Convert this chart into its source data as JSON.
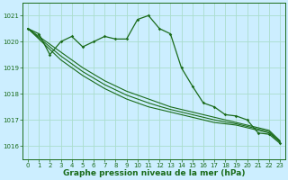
{
  "title": "Graphe pression niveau de la mer (hPa)",
  "background_color": "#cceeff",
  "grid_color": "#aaddcc",
  "line_color": "#1a6b1a",
  "x_values": [
    0,
    1,
    2,
    3,
    4,
    5,
    6,
    7,
    8,
    9,
    10,
    11,
    12,
    13,
    14,
    15,
    16,
    17,
    18,
    19,
    20,
    21,
    22,
    23
  ],
  "series_jagged": [
    1020.5,
    1020.3,
    1019.5,
    1020.0,
    1020.2,
    1019.8,
    1020.0,
    1020.2,
    1020.1,
    1020.1,
    1020.85,
    1021.0,
    1020.5,
    1020.3,
    1019.0,
    1018.3,
    1017.65,
    1017.5,
    1017.2,
    1017.15,
    1017.0,
    1016.5,
    1016.45,
    1016.1
  ],
  "series_line1": [
    1020.5,
    1020.1,
    1019.7,
    1019.3,
    1019.0,
    1018.7,
    1018.45,
    1018.2,
    1018.0,
    1017.8,
    1017.65,
    1017.5,
    1017.4,
    1017.3,
    1017.2,
    1017.1,
    1017.0,
    1016.9,
    1016.85,
    1016.8,
    1016.7,
    1016.6,
    1016.5,
    1016.15
  ],
  "series_line2": [
    1020.5,
    1020.2,
    1019.9,
    1019.6,
    1019.3,
    1019.0,
    1018.75,
    1018.5,
    1018.3,
    1018.1,
    1017.95,
    1017.8,
    1017.65,
    1017.5,
    1017.4,
    1017.3,
    1017.2,
    1017.1,
    1017.0,
    1016.9,
    1016.8,
    1016.7,
    1016.6,
    1016.2
  ],
  "series_line3": [
    1020.5,
    1020.15,
    1019.8,
    1019.45,
    1019.15,
    1018.85,
    1018.6,
    1018.35,
    1018.15,
    1017.95,
    1017.8,
    1017.65,
    1017.52,
    1017.4,
    1017.3,
    1017.2,
    1017.1,
    1017.0,
    1016.92,
    1016.85,
    1016.75,
    1016.65,
    1016.55,
    1016.17
  ],
  "ylim": [
    1015.5,
    1021.5
  ],
  "yticks": [
    1016,
    1017,
    1018,
    1019,
    1020,
    1021
  ],
  "xlim": [
    -0.5,
    23.5
  ],
  "xticks": [
    0,
    1,
    2,
    3,
    4,
    5,
    6,
    7,
    8,
    9,
    10,
    11,
    12,
    13,
    14,
    15,
    16,
    17,
    18,
    19,
    20,
    21,
    22,
    23
  ],
  "tick_fontsize": 5.0,
  "title_fontsize": 6.5,
  "title_fontweight": "bold"
}
